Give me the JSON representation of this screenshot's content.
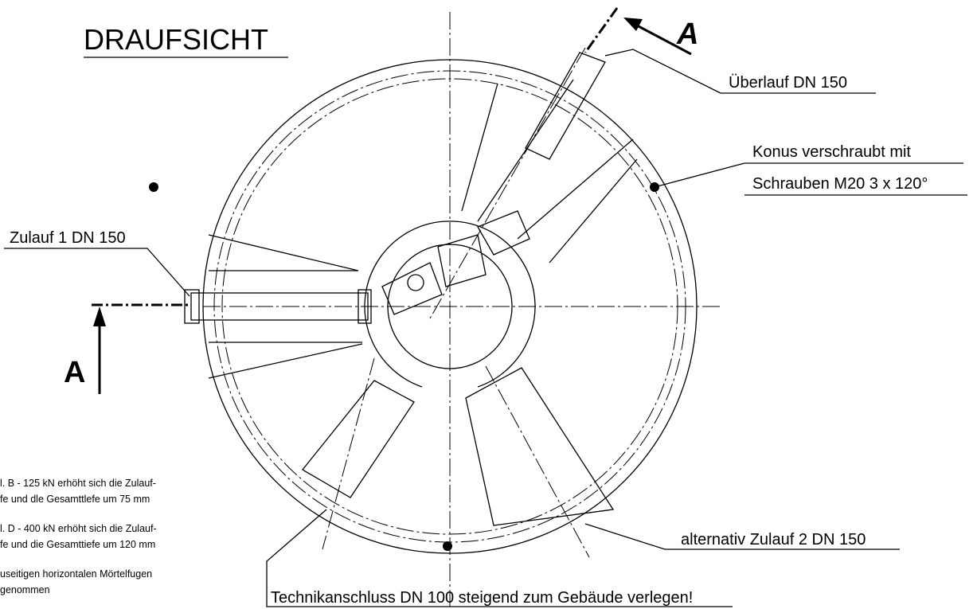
{
  "header": {
    "title": "DRAUFSICHT"
  },
  "section_marks": [
    "A",
    "A"
  ],
  "labels": {
    "overflow": "Überlauf DN 150",
    "cone_1": "Konus verschraubt mit",
    "cone_2": "Schrauben M20 3 x 120°",
    "inlet_1": "Zulauf 1 DN 150",
    "inlet_2": "alternativ Zulauf 2 DN 150",
    "technical": "Technikanschluss DN 100 steigend zum Gebäude verlegen!"
  },
  "notes": [
    "l. B -  125 kN erhöht sich die Zulauf-",
    "fe  und dle Gesamttlefe um 75 mm",
    "l. D -  400 kN erhöht sich die Zulauf-",
    "fe  und die Gesamttiefe um 120 mm",
    "useitigen horizontalen Mörtelfugen",
    "genommen"
  ]
}
